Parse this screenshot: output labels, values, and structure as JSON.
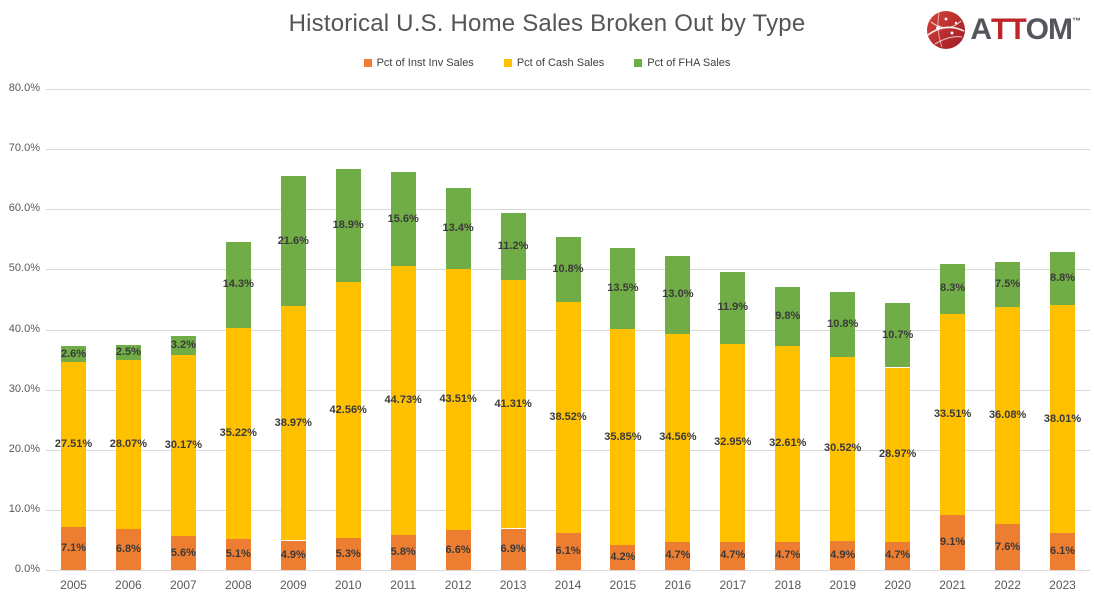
{
  "title": "Historical U.S. Home Sales Broken Out by Type",
  "logo": {
    "brand": "ATTOM",
    "part_gray_1": "A",
    "part_red": "TT",
    "part_gray_2": "OM",
    "trademark": "™",
    "red": "#C02428",
    "gray": "#54565B"
  },
  "colors": {
    "inst_inv": "#ED7D31",
    "cash": "#FFC000",
    "fha": "#70AD47",
    "gridline": "#D9D9D9",
    "axis_text": "#595959",
    "label_text": "#3A3A3A",
    "title_text": "#555555"
  },
  "chart_data": {
    "type": "bar",
    "stacked": true,
    "title": "Historical U.S. Home Sales Broken Out by Type",
    "xlabel": "",
    "ylabel": "",
    "ylim": [
      0,
      80
    ],
    "ytick_labels": [
      "0.0%",
      "10.0%",
      "20.0%",
      "30.0%",
      "40.0%",
      "50.0%",
      "60.0%",
      "70.0%",
      "80.0%"
    ],
    "grid": true,
    "legend_position": "top-center",
    "categories": [
      "2005",
      "2006",
      "2007",
      "2008",
      "2009",
      "2010",
      "2011",
      "2012",
      "2013",
      "2014",
      "2015",
      "2016",
      "2017",
      "2018",
      "2019",
      "2020",
      "2021",
      "2022",
      "2023"
    ],
    "series": [
      {
        "name": "Pct of Inst Inv Sales",
        "color": "#ED7D31",
        "values": [
          7.1,
          6.8,
          5.6,
          5.1,
          4.9,
          5.3,
          5.8,
          6.6,
          6.9,
          6.1,
          4.2,
          4.7,
          4.7,
          4.7,
          4.9,
          4.7,
          9.1,
          7.6,
          6.1
        ],
        "labels": [
          "7.1%",
          "6.8%",
          "5.6%",
          "5.1%",
          "4.9%",
          "5.3%",
          "5.8%",
          "6.6%",
          "6.9%",
          "6.1%",
          "4.2%",
          "4.7%",
          "4.7%",
          "4.7%",
          "4.9%",
          "4.7%",
          "9.1%",
          "7.6%",
          "6.1%"
        ]
      },
      {
        "name": "Pct of Cash Sales",
        "color": "#FFC000",
        "values": [
          27.51,
          28.07,
          30.17,
          35.22,
          38.97,
          42.56,
          44.73,
          43.51,
          41.31,
          38.52,
          35.85,
          34.56,
          32.95,
          32.61,
          30.52,
          28.97,
          33.51,
          36.08,
          38.01
        ],
        "labels": [
          "27.51%",
          "28.07%",
          "30.17%",
          "35.22%",
          "38.97%",
          "42.56%",
          "44.73%",
          "43.51%",
          "41.31%",
          "38.52%",
          "35.85%",
          "34.56%",
          "32.95%",
          "32.61%",
          "30.52%",
          "28.97%",
          "33.51%",
          "36.08%",
          "38.01%"
        ]
      },
      {
        "name": "Pct of FHA Sales",
        "color": "#70AD47",
        "values": [
          2.6,
          2.5,
          3.2,
          14.3,
          21.6,
          18.9,
          15.6,
          13.4,
          11.2,
          10.8,
          13.5,
          13.0,
          11.9,
          9.8,
          10.8,
          10.7,
          8.3,
          7.5,
          8.8
        ],
        "labels": [
          "2.6%",
          "2.5%",
          "3.2%",
          "14.3%",
          "21.6%",
          "18.9%",
          "15.6%",
          "13.4%",
          "11.2%",
          "10.8%",
          "13.5%",
          "13.0%",
          "11.9%",
          "9.8%",
          "10.8%",
          "10.7%",
          "8.3%",
          "7.5%",
          "8.8%"
        ]
      }
    ]
  }
}
